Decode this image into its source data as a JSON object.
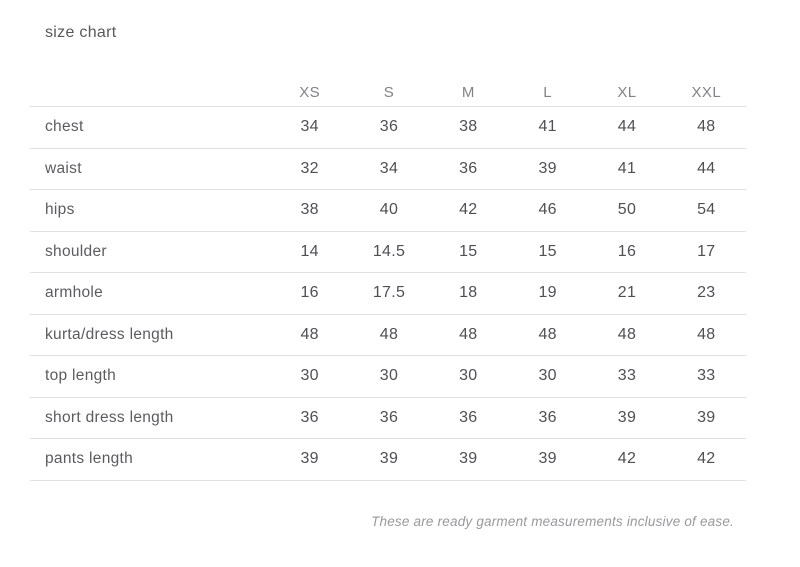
{
  "page": {
    "title": "size chart",
    "footnote": "These are ready garment measurements inclusive of ease."
  },
  "chart_data": {
    "type": "table",
    "title": "size chart",
    "columns": [
      "XS",
      "S",
      "M",
      "L",
      "XL",
      "XXL"
    ],
    "rows": [
      {
        "label": "chest",
        "values": [
          "34",
          "36",
          "38",
          "41",
          "44",
          "48"
        ]
      },
      {
        "label": "waist",
        "values": [
          "32",
          "34",
          "36",
          "39",
          "41",
          "44"
        ]
      },
      {
        "label": "hips",
        "values": [
          "38",
          "40",
          "42",
          "46",
          "50",
          "54"
        ]
      },
      {
        "label": "shoulder",
        "values": [
          "14",
          "14.5",
          "15",
          "15",
          "16",
          "17"
        ]
      },
      {
        "label": "armhole",
        "values": [
          "16",
          "17.5",
          "18",
          "19",
          "21",
          "23"
        ]
      },
      {
        "label": "kurta/dress length",
        "values": [
          "48",
          "48",
          "48",
          "48",
          "48",
          "48"
        ]
      },
      {
        "label": "top length",
        "values": [
          "30",
          "30",
          "30",
          "30",
          "33",
          "33"
        ]
      },
      {
        "label": "short dress length",
        "values": [
          "36",
          "36",
          "36",
          "36",
          "39",
          "39"
        ]
      },
      {
        "label": "pants length",
        "values": [
          "39",
          "39",
          "39",
          "39",
          "42",
          "42"
        ]
      }
    ],
    "footnote": "These are ready garment measurements inclusive of ease."
  },
  "colors": {
    "background": "#ffffff",
    "title_text": "#58595b",
    "header_text": "#818385",
    "label_text": "#5a5c5e",
    "value_text": "#4e5053",
    "divider": "#e1e1e1",
    "footnote_text": "#98999b"
  }
}
